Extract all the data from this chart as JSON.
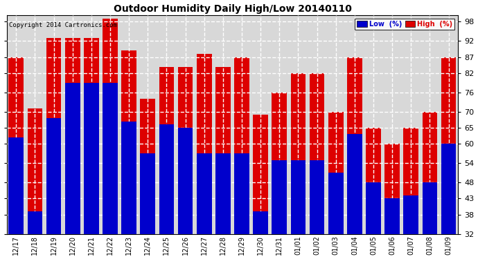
{
  "title": "Outdoor Humidity Daily High/Low 20140110",
  "copyright": "Copyright 2014 Cartronics.com",
  "legend_low": "Low  (%)",
  "legend_high": "High  (%)",
  "low_color": "#0000cc",
  "high_color": "#dd0000",
  "bg_color": "#ffffff",
  "plot_bg_color": "#d8d8d8",
  "ylim": [
    32,
    100
  ],
  "yticks": [
    32,
    38,
    43,
    48,
    54,
    60,
    65,
    70,
    76,
    82,
    87,
    92,
    98
  ],
  "grid_color": "#ffffff",
  "categories": [
    "12/17",
    "12/18",
    "12/19",
    "12/20",
    "12/21",
    "12/22",
    "12/23",
    "12/24",
    "12/25",
    "12/26",
    "12/27",
    "12/28",
    "12/29",
    "12/30",
    "12/31",
    "01/01",
    "01/02",
    "01/03",
    "01/04",
    "01/05",
    "01/06",
    "01/07",
    "01/08",
    "01/09"
  ],
  "high_values": [
    87,
    71,
    93,
    93,
    93,
    99,
    89,
    74,
    84,
    84,
    88,
    84,
    87,
    69,
    76,
    82,
    82,
    70,
    87,
    65,
    60,
    65,
    70,
    87
  ],
  "low_values": [
    62,
    39,
    68,
    79,
    79,
    79,
    67,
    57,
    66,
    65,
    57,
    57,
    57,
    39,
    55,
    55,
    55,
    51,
    63,
    48,
    43,
    44,
    48,
    60
  ]
}
